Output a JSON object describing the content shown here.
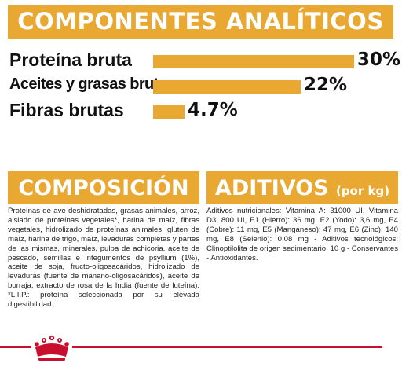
{
  "analytic": {
    "title": "COMPONENTES ANALÍTICOS",
    "rows": [
      {
        "label": "Proteína bruta",
        "value": "30%",
        "percent": 30
      },
      {
        "label": "Aceites y grasas brutos",
        "value": "22%",
        "percent": 22
      },
      {
        "label": "Fibras brutas",
        "value": "4.7%",
        "percent": 4.7
      }
    ]
  },
  "composition": {
    "title": "COMPOSICIÓN",
    "text": "Proteínas de ave deshidratadas, grasas animales, arroz, aislado de proteínas vegetales*, harina de maíz, fibras vegetales, hidrolizado de proteínas animales, gluten de maíz, harina de trigo, maíz, levaduras completas y partes de las mismas, minerales, pulpa de achicoria, aceite de pescado, semillas e integumentos de psyllium (1%), aceite de soja, fructo-oligosacáridos, hidrolizado de levaduras (fuente de manano-oligosacáridos), aceite de borraja, extracto de rosa de la India (fuente de luteína). *L.I.P.: proteína seleccionada por su elevada digestibilidad."
  },
  "additives": {
    "title": "ADITIVOS",
    "title_suffix": "(por kg)",
    "text": "Aditivos nutricionales: Vitamina A: 31000 UI, Vitamina D3: 800 UI, E1 (Hierro): 36 mg, E2 (Yodo): 3,6 mg, E4 (Cobre): 11 mg, E5 (Manganeso): 47 mg, E6 (Zinc): 140 mg, E8 (Selenio): 0,08 mg - Aditivos tecnológicos: Clinoptilolita de origen sedimentario: 10 g - Conservantes - Antioxidantes."
  },
  "colors": {
    "accent": "#E8A832",
    "brand_red": "#C8102E"
  },
  "footer": {
    "logo_icon": "royal-canin-crown-icon"
  }
}
